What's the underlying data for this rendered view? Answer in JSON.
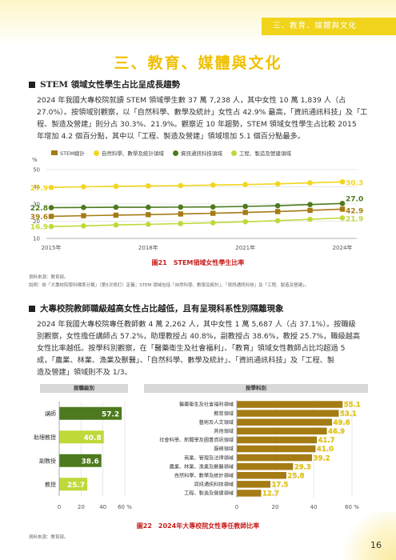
{
  "header": {
    "tab": "三、教育、媒體與文化",
    "section_title": "三、教育、媒體與文化"
  },
  "section1": {
    "heading": "STEM 領域女性學生占比呈成長趨勢",
    "lines": [
      "2024 年我國大專校院就讀 STEM 領域學生數 37 萬 7,238 人，其中女性 10 萬 1,839 人（占",
      "27.0%）。按領域別觀察，以「自然科學、數學及統計」女性占 42.9% 最高，「資訊通訊科技」及「工",
      "程、製造及營建」則分占 30.3%、21.9%。觀察近 10 年趨勢，STEM 領域女性學生占比較 2015",
      "年增加 4.2 個百分點，其中以「工程、製造及營建」領域增加 5.1 個百分點最多。"
    ]
  },
  "chart21": {
    "chart_data": {
      "type": "line",
      "ylabel": "%",
      "ylim": [
        10,
        50
      ],
      "yticks": [
        "50",
        "40",
        "30",
        "20",
        "10"
      ],
      "x_tick_labels": [
        "2015年",
        "2018年",
        "2021年",
        "2024年"
      ],
      "legend_position": "top",
      "series": [
        {
          "name": "STEM總計",
          "color": "#a57b14",
          "marker": "square",
          "values": [
            22.8,
            23.2,
            23.5,
            23.8,
            24.2,
            24.6,
            25.1,
            25.6,
            26.3,
            27.0
          ]
        },
        {
          "name": "自然科學、數學及統計領域",
          "color": "#f2d61d",
          "marker": "dot",
          "values": [
            39.6,
            40.0,
            40.3,
            40.5,
            40.7,
            41.0,
            41.3,
            41.7,
            42.3,
            42.9
          ]
        },
        {
          "name": "資訊通訊科技領域",
          "color": "#4d7a1e",
          "marker": "dot",
          "values": [
            27.9,
            28.0,
            28.1,
            28.1,
            28.2,
            28.3,
            28.6,
            29.0,
            29.7,
            30.3
          ]
        },
        {
          "name": "工程、製造及營建領域",
          "color": "#bfd93a",
          "marker": "dot",
          "values": [
            16.9,
            17.3,
            17.8,
            18.2,
            18.6,
            19.1,
            19.7,
            20.3,
            21.1,
            21.9
          ]
        }
      ],
      "start_labels": [
        "39.6",
        "27.9",
        "22.8",
        "16.9"
      ],
      "end_labels": [
        "42.9",
        "30.3",
        "27.0",
        "21.9"
      ]
    },
    "caption": "圖21　STEM領域女性學生比率",
    "source": "資料來源：教育部。",
    "note": "說明：依「大專校院學科標準分類」（第5次修訂）定義；STEM 領域包括「自然科學、數學及統計」、「資訊通訊科技」及「工程、製造及營建」。"
  },
  "section2": {
    "heading": "大專校院教師職級越高女性占比越低，且有呈現科系性別隔離現象",
    "lines": [
      "2024 年我國大專校院專任教師數 4 萬 2,262 人，其中女性 1 萬 5,687 人（占 37.1%）。按職級",
      "別觀察，女性擔任講師占 57.2%，助理教授占 40.8%，副教授占 38.6%，教授 25.7%，職級越高",
      "女性比率越低。按學科別觀察，在「醫藥衛生及社會福利」、「教育」領域女性教師占比均超過 5",
      "成，「農業、林業、漁業及獸醫」、「自然科學、數學及統計」、「資訊通訊科技」及「工程、製",
      "造及營建」領域則不及 1/3。"
    ]
  },
  "chart22": {
    "left_panel_title": "按職級別",
    "right_panel_title": "按學科別",
    "chart_data": [
      {
        "type": "bar",
        "orientation": "horizontal",
        "xlim": [
          0,
          60
        ],
        "xticks": [
          "0",
          "20",
          "40",
          "60 %"
        ],
        "categories": [
          "講師",
          "助理教授",
          "副教授",
          "教授"
        ],
        "values": [
          57.2,
          40.8,
          38.6,
          25.7
        ],
        "labels": [
          "57.2",
          "40.8",
          "38.6",
          "25.7"
        ],
        "colors": [
          "#4d7a1e",
          "#bfd93a",
          "#4d7a1e",
          "#bfd93a"
        ]
      },
      {
        "type": "bar",
        "orientation": "horizontal",
        "xlim": [
          0,
          60
        ],
        "xticks": [
          "0",
          "20",
          "40",
          "60 %"
        ],
        "categories": [
          "醫藥衛生及社會福利領域",
          "教育領域",
          "藝術及人文領域",
          "其他領域",
          "社會科學、新聞學及圖書資訊領域",
          "服務領域",
          "商業、管理及法律領域",
          "農業、林業、漁業及獸醫領域",
          "自然科學、數學及統計領域",
          "資訊通訊科技領域",
          "工程、製造及營建領域"
        ],
        "values": [
          55.1,
          53.1,
          49.6,
          46.9,
          41.7,
          41.0,
          39.2,
          29.3,
          25.8,
          17.5,
          12.7
        ],
        "labels": [
          "55.1",
          "53.1",
          "49.6",
          "46.9",
          "41.7",
          "41.0",
          "39.2",
          "29.3",
          "25.8",
          "17.5",
          "12.7"
        ],
        "color": "#a57b14"
      }
    ],
    "caption": "圖22　2024年大專校院女性專任教師比率",
    "source": "資料來源：教育部。"
  },
  "page_number": "16"
}
